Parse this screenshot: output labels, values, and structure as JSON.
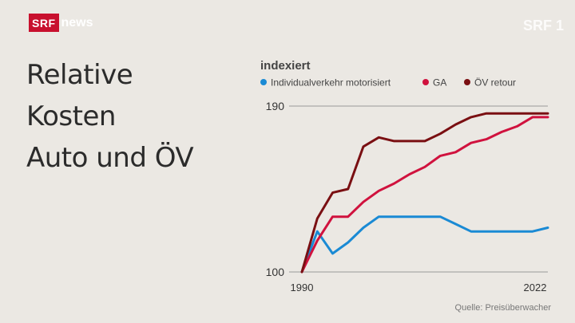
{
  "brand": {
    "name": "SRF",
    "product": "news",
    "channel_badge": "SRF 1"
  },
  "title_lines": [
    "Relative",
    "Kosten",
    "Auto und ÖV"
  ],
  "source": "Quelle: Preisüberwacher",
  "colors": {
    "background": "#ebe8e3",
    "brand_red": "#c8102e",
    "grid": "#9a9a9a"
  },
  "chart_data": {
    "type": "line",
    "title": "indexiert",
    "ylim": [
      100,
      190
    ],
    "yticks": [
      100,
      190
    ],
    "xlim": [
      1990,
      2022
    ],
    "xticks": [
      1990,
      2022
    ],
    "x": [
      1990,
      1992,
      1994,
      1996,
      1998,
      2000,
      2002,
      2004,
      2006,
      2008,
      2010,
      2012,
      2014,
      2016,
      2018,
      2020,
      2022
    ],
    "legend_position": "top",
    "series": [
      {
        "name": "Individualverkehr motorisiert",
        "color": "#1a8ad4",
        "values": [
          100,
          122,
          110,
          116,
          124,
          130,
          130,
          130,
          130,
          130,
          126,
          122,
          122,
          122,
          122,
          122,
          124
        ]
      },
      {
        "name": "GA",
        "color": "#d0123e",
        "values": [
          100,
          117,
          130,
          130,
          138,
          144,
          148,
          153,
          157,
          163,
          165,
          170,
          172,
          176,
          179,
          184,
          184
        ]
      },
      {
        "name": "ÖV retour",
        "color": "#7a0f12",
        "values": [
          100,
          129,
          143,
          145,
          168,
          173,
          171,
          171,
          171,
          175,
          180,
          184,
          186,
          186,
          186,
          186,
          186
        ]
      }
    ]
  }
}
